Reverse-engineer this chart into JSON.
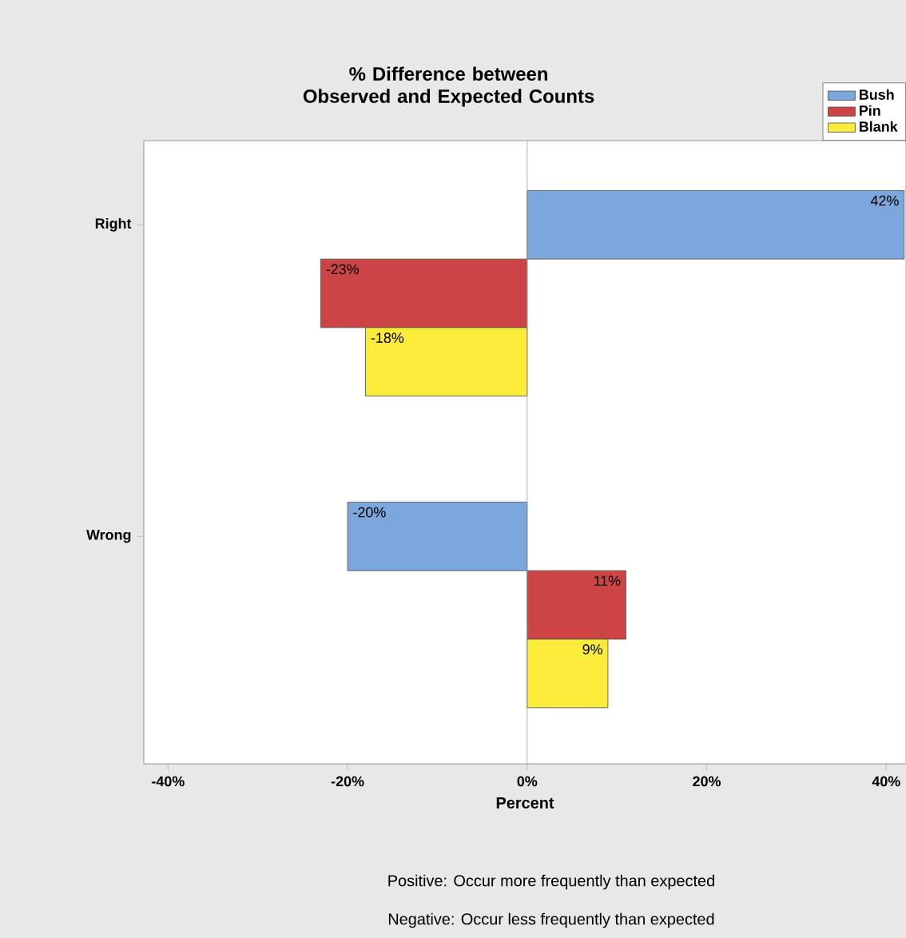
{
  "chart_data": {
    "type": "bar",
    "orientation": "horizontal",
    "title": "% Difference between Observed and Expected Counts",
    "xlabel": "Percent",
    "categories": [
      "Right",
      "Wrong"
    ],
    "series": [
      {
        "name": "Bush",
        "color": "#7ba7dc",
        "values": [
          42,
          -20
        ],
        "value_labels": [
          "42%",
          "-20%"
        ]
      },
      {
        "name": "Pin",
        "color": "#cc4444",
        "values": [
          -23,
          11
        ],
        "value_labels": [
          "-23%",
          "11%"
        ]
      },
      {
        "name": "Blank",
        "color": "#fbec3c",
        "values": [
          -18,
          9
        ],
        "value_labels": [
          "-18%",
          "9%"
        ]
      }
    ],
    "xlim": [
      -42.7,
      42.2
    ],
    "xticks": [
      {
        "value": -40,
        "label": "-40%"
      },
      {
        "value": -20,
        "label": "-20%"
      },
      {
        "value": 0,
        "label": "0%"
      },
      {
        "value": 20,
        "label": "20%"
      },
      {
        "value": 40,
        "label": "40%"
      }
    ],
    "ref_lines": [
      {
        "axis": "x",
        "value": 0,
        "color": "#a0a0a0"
      }
    ],
    "legend": "top right",
    "annotations": [
      "Positive: Occur more frequently than expected",
      "Negative: Occur less frequently than expected"
    ]
  }
}
